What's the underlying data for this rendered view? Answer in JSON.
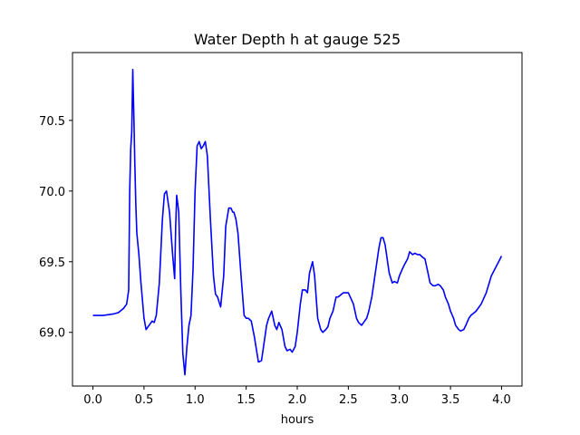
{
  "chart_data": {
    "type": "line",
    "title": "Water Depth h at gauge 525",
    "xlabel": "hours",
    "ylabel": "",
    "xlim": [
      -0.2,
      4.2
    ],
    "ylim": [
      68.62,
      70.98
    ],
    "xticks": [
      0.0,
      0.5,
      1.0,
      1.5,
      2.0,
      2.5,
      3.0,
      3.5,
      4.0
    ],
    "xtick_labels": [
      "0.0",
      "0.5",
      "1.0",
      "1.5",
      "2.0",
      "2.5",
      "3.0",
      "3.5",
      "4.0"
    ],
    "yticks": [
      69.0,
      69.5,
      70.0,
      70.5
    ],
    "ytick_labels": [
      "69.0",
      "69.5",
      "70.0",
      "70.5"
    ],
    "grid": false,
    "series": [
      {
        "color": "#0000ff",
        "x": [
          0.0,
          0.1,
          0.2,
          0.25,
          0.3,
          0.33,
          0.35,
          0.36,
          0.37,
          0.38,
          0.39,
          0.4,
          0.41,
          0.42,
          0.43,
          0.45,
          0.47,
          0.5,
          0.52,
          0.55,
          0.58,
          0.6,
          0.62,
          0.65,
          0.68,
          0.7,
          0.72,
          0.75,
          0.78,
          0.8,
          0.81,
          0.82,
          0.84,
          0.86,
          0.88,
          0.9,
          0.92,
          0.94,
          0.96,
          0.98,
          1.0,
          1.02,
          1.04,
          1.06,
          1.08,
          1.1,
          1.12,
          1.15,
          1.18,
          1.2,
          1.22,
          1.25,
          1.28,
          1.3,
          1.33,
          1.35,
          1.37,
          1.38,
          1.4,
          1.42,
          1.45,
          1.48,
          1.5,
          1.52,
          1.55,
          1.58,
          1.6,
          1.62,
          1.65,
          1.68,
          1.7,
          1.72,
          1.75,
          1.78,
          1.8,
          1.82,
          1.85,
          1.88,
          1.9,
          1.93,
          1.95,
          1.98,
          2.0,
          2.03,
          2.05,
          2.08,
          2.1,
          2.12,
          2.15,
          2.17,
          2.2,
          2.23,
          2.25,
          2.28,
          2.3,
          2.32,
          2.35,
          2.38,
          2.4,
          2.45,
          2.5,
          2.55,
          2.58,
          2.6,
          2.63,
          2.65,
          2.68,
          2.7,
          2.73,
          2.75,
          2.78,
          2.8,
          2.82,
          2.84,
          2.86,
          2.88,
          2.9,
          2.93,
          2.95,
          2.98,
          3.0,
          3.03,
          3.05,
          3.08,
          3.1,
          3.13,
          3.15,
          3.18,
          3.2,
          3.23,
          3.25,
          3.28,
          3.3,
          3.33,
          3.35,
          3.38,
          3.4,
          3.43,
          3.45,
          3.48,
          3.5,
          3.53,
          3.55,
          3.58,
          3.6,
          3.63,
          3.65,
          3.68,
          3.7,
          3.75,
          3.8,
          3.85,
          3.9,
          3.95,
          4.0
        ],
        "y": [
          69.12,
          69.12,
          69.13,
          69.14,
          69.17,
          69.2,
          69.3,
          70.0,
          70.3,
          70.42,
          70.86,
          70.55,
          70.2,
          69.9,
          69.7,
          69.55,
          69.35,
          69.1,
          69.02,
          69.05,
          69.08,
          69.07,
          69.12,
          69.35,
          69.8,
          69.98,
          70.0,
          69.85,
          69.55,
          69.38,
          69.75,
          69.97,
          69.85,
          69.3,
          68.85,
          68.7,
          68.9,
          69.05,
          69.12,
          69.45,
          70.0,
          70.32,
          70.35,
          70.3,
          70.32,
          70.35,
          70.25,
          69.8,
          69.4,
          69.27,
          69.25,
          69.18,
          69.4,
          69.75,
          69.88,
          69.88,
          69.85,
          69.85,
          69.8,
          69.7,
          69.4,
          69.12,
          69.1,
          69.1,
          69.08,
          68.97,
          68.88,
          68.79,
          68.8,
          68.95,
          69.05,
          69.1,
          69.15,
          69.05,
          69.02,
          69.07,
          69.02,
          68.9,
          68.87,
          68.88,
          68.86,
          68.9,
          69.0,
          69.2,
          69.3,
          69.3,
          69.28,
          69.42,
          69.5,
          69.4,
          69.1,
          69.02,
          69.0,
          69.02,
          69.04,
          69.1,
          69.15,
          69.25,
          69.25,
          69.28,
          69.28,
          69.2,
          69.1,
          69.07,
          69.05,
          69.07,
          69.1,
          69.15,
          69.25,
          69.35,
          69.5,
          69.6,
          69.67,
          69.67,
          69.62,
          69.52,
          69.42,
          69.35,
          69.36,
          69.35,
          69.4,
          69.45,
          69.48,
          69.52,
          69.57,
          69.55,
          69.56,
          69.55,
          69.55,
          69.53,
          69.52,
          69.42,
          69.35,
          69.33,
          69.33,
          69.34,
          69.33,
          69.3,
          69.25,
          69.2,
          69.15,
          69.1,
          69.05,
          69.02,
          69.01,
          69.02,
          69.05,
          69.1,
          69.12,
          69.15,
          69.2,
          69.28,
          69.4,
          69.47,
          69.54
        ]
      }
    ]
  }
}
